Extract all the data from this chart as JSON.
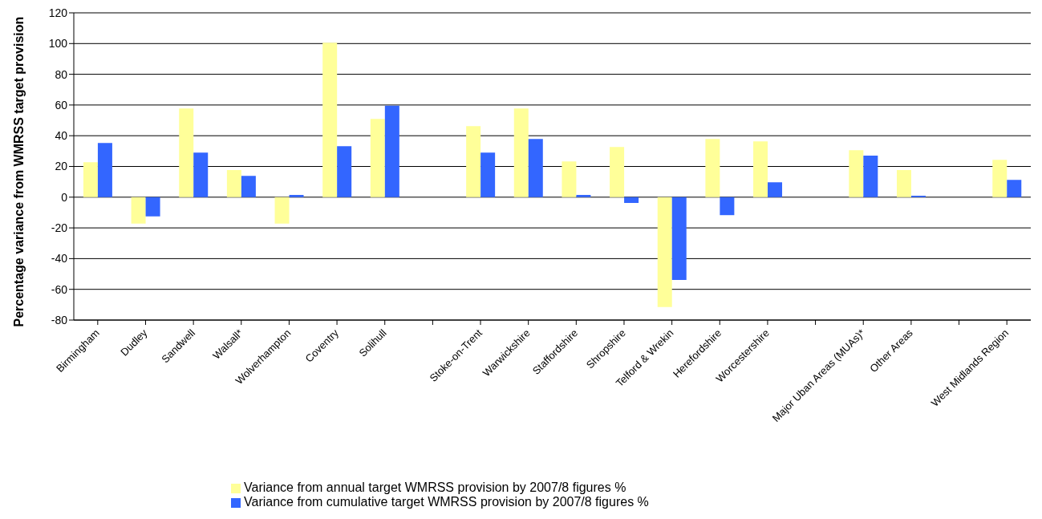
{
  "chart_data": {
    "type": "bar",
    "ylabel": "Percentage variance from WMRSS target provision",
    "categories": [
      "Birmingham",
      "Dudley",
      "Sandwell",
      "Walsall*",
      "Wolverhampton",
      "Coventry",
      "Solihull",
      null,
      "Stoke-on-Trent",
      "Warwickshire",
      "Staffordshire",
      "Shropshire",
      "Telford & Wrekin",
      "Herefordshire",
      "Worcestershire",
      null,
      "Major Uban Areas (MUAs)*",
      "Other Areas",
      null,
      "West Midlands Region"
    ],
    "series": [
      {
        "name": "Variance from annual target WMRSS provision by 2007/8 figures %",
        "color": "#ffff99",
        "values": [
          22.8,
          -17.2,
          57.7,
          17.6,
          -17.2,
          100.5,
          51,
          null,
          46.3,
          57.7,
          23.3,
          32.7,
          -71.5,
          37.9,
          36.3,
          null,
          30.6,
          17.6,
          null,
          24.3
        ]
      },
      {
        "name": "Variance from cumulative target WMRSS provision by 2007/8 figures %",
        "color": "#3366ff",
        "values": [
          35.3,
          -12.5,
          29,
          13.9,
          1.4,
          33.2,
          59.5,
          null,
          29,
          37.9,
          1.4,
          -3.8,
          -53.9,
          -11.7,
          9.7,
          null,
          27,
          0.9,
          null,
          11.3
        ]
      }
    ],
    "ylim": [
      -80,
      120
    ],
    "yticks": [
      -80,
      -60,
      -40,
      -20,
      0,
      20,
      40,
      60,
      80,
      100,
      120
    ],
    "grid": "y",
    "legend": "bottom"
  }
}
